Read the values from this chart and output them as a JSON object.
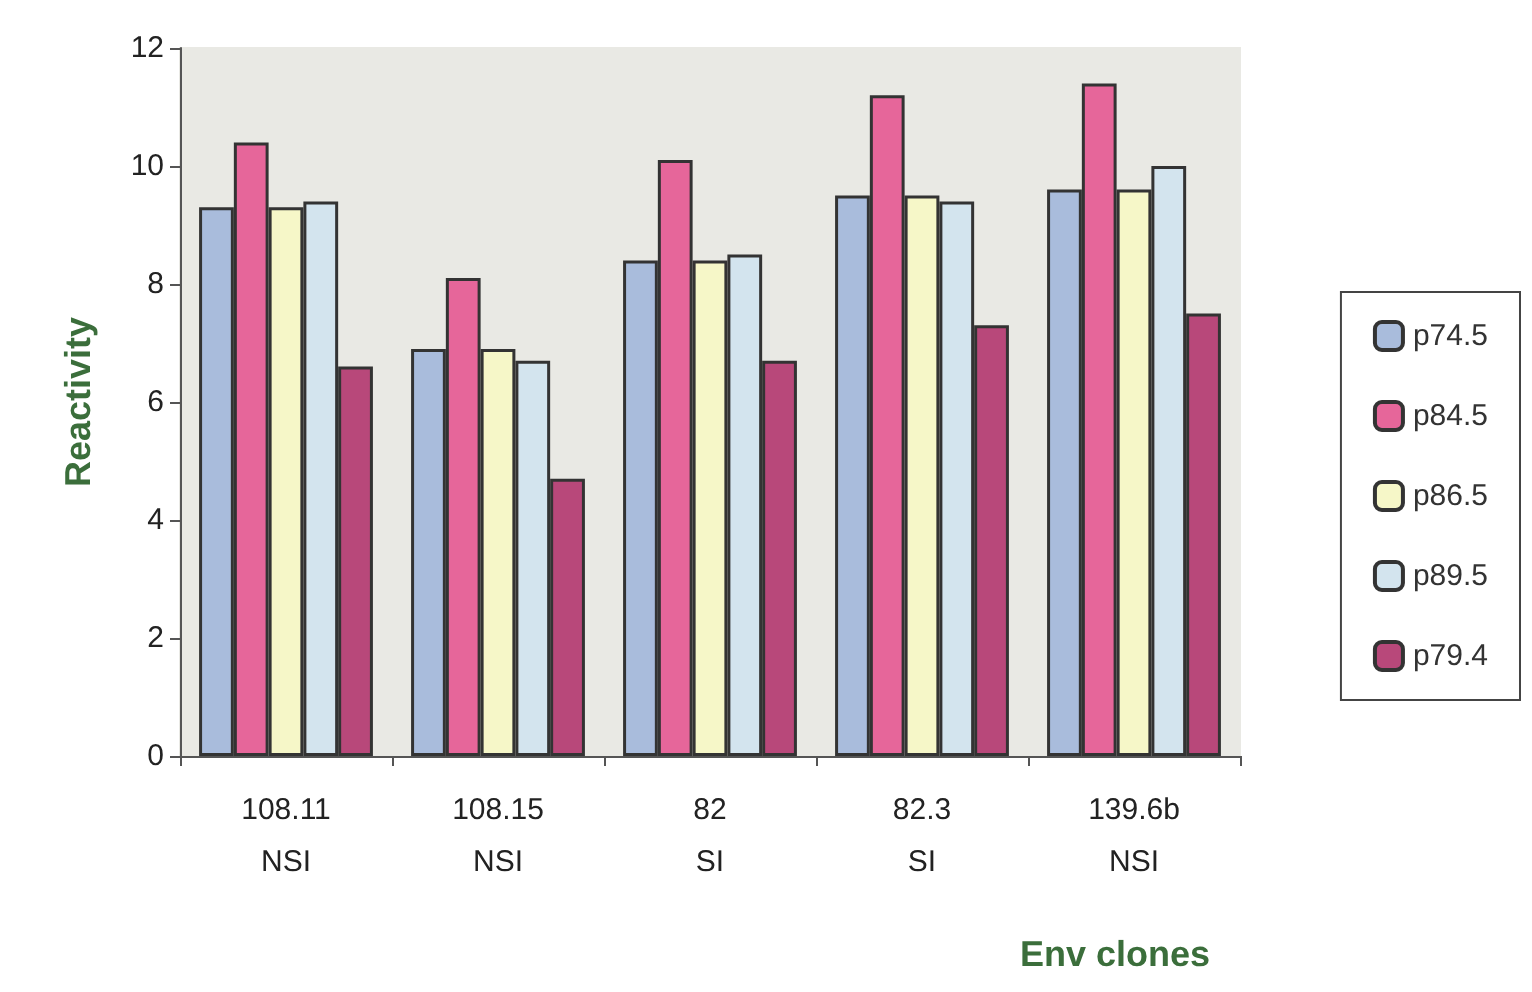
{
  "chart_data": {
    "type": "bar",
    "xlabel": "Env clones",
    "ylabel": "Reactivity",
    "categories": [
      "108.11\nNSI",
      "108.15\nNSI",
      "82\nSI",
      "82.3\nSI",
      "139.6b\nNSI"
    ],
    "series": [
      {
        "name": "p74.5",
        "color": "#a9bcdc",
        "values": [
          9.3,
          6.9,
          8.4,
          9.5,
          9.6
        ]
      },
      {
        "name": "p84.5",
        "color": "#e6669a",
        "values": [
          10.4,
          8.1,
          10.1,
          11.2,
          11.4
        ]
      },
      {
        "name": "p86.5",
        "color": "#f6f7c8",
        "values": [
          9.3,
          6.9,
          8.4,
          9.5,
          9.6
        ]
      },
      {
        "name": "p89.5",
        "color": "#d3e4ee",
        "values": [
          9.4,
          6.7,
          8.5,
          9.4,
          10.0
        ]
      },
      {
        "name": "p79.4",
        "color": "#b8487a",
        "values": [
          6.6,
          4.7,
          6.7,
          7.3,
          7.5
        ]
      }
    ],
    "ylim": [
      0,
      12
    ],
    "yticks": [
      0,
      2,
      4,
      6,
      8,
      10,
      12
    ],
    "grid": false,
    "legend": "right"
  }
}
